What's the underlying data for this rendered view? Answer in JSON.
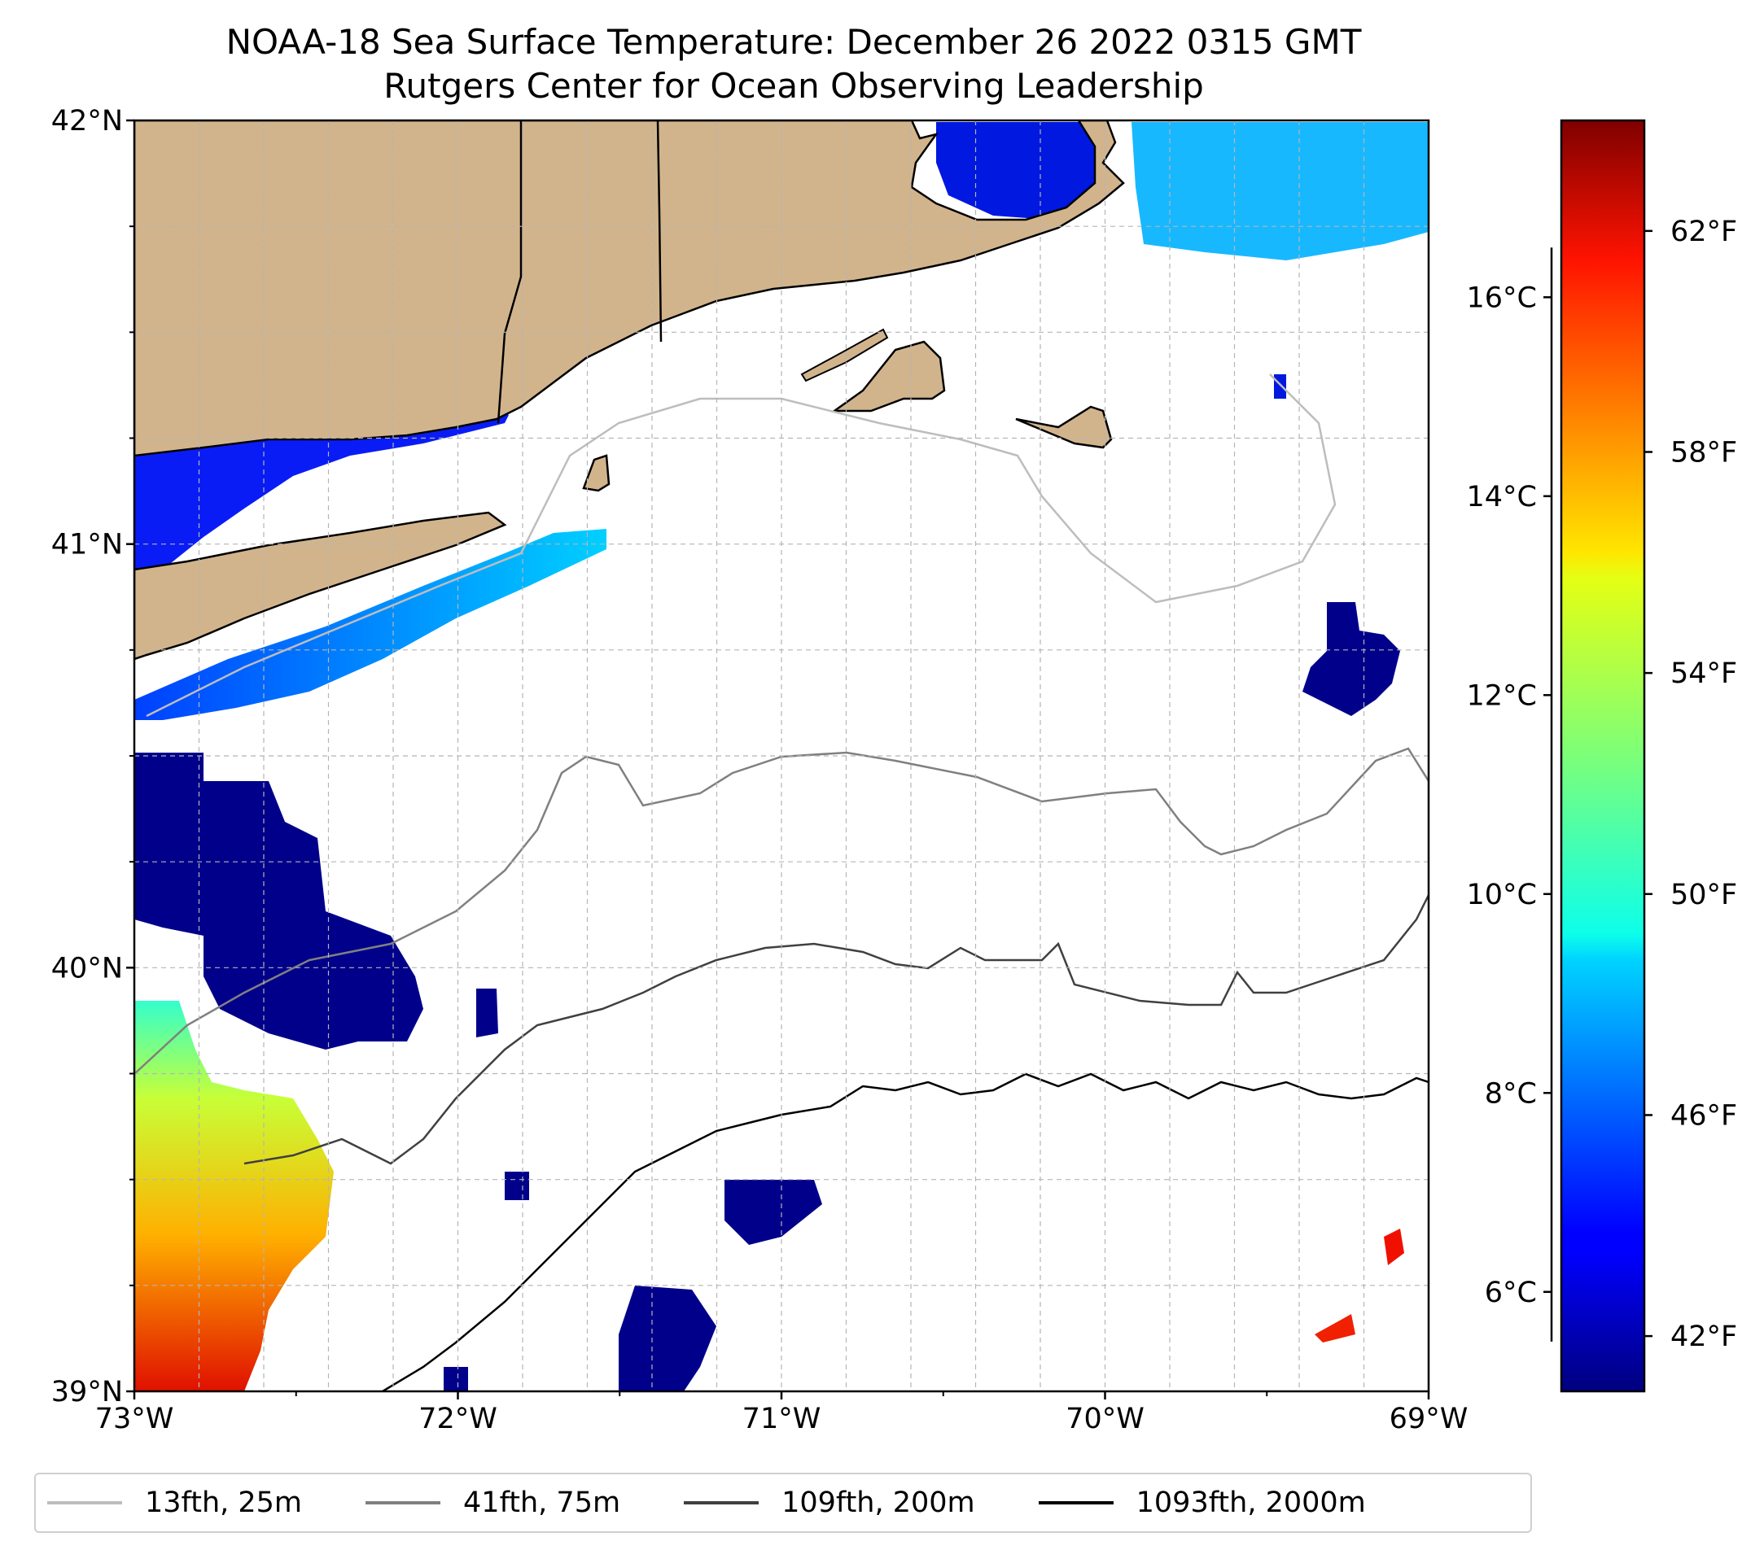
{
  "title": "NOAA-18 Sea Surface Temperature: December 26 2022 0315 GMT",
  "subtitle": "Rutgers Center for Ocean Observing Leadership",
  "map": {
    "lon_range": [
      -73,
      -69
    ],
    "lat_range": [
      39,
      42
    ],
    "lon_ticks": [
      {
        "value": -73,
        "label": "73°W"
      },
      {
        "value": -72,
        "label": "72°W"
      },
      {
        "value": -71,
        "label": "71°W"
      },
      {
        "value": -70,
        "label": "70°W"
      },
      {
        "value": -69,
        "label": "69°W"
      }
    ],
    "lat_ticks": [
      {
        "value": 42,
        "label": "42°N"
      },
      {
        "value": 41,
        "label": "41°N"
      },
      {
        "value": 40,
        "label": "40°N"
      },
      {
        "value": 39,
        "label": "39°N"
      }
    ],
    "gridlines": "dashed",
    "land_color": "#d2b48c",
    "land_regions": [
      "Southern New England",
      "Long Island",
      "Cape Cod",
      "Martha's Vineyard",
      "Nantucket",
      "Block Island"
    ],
    "cloud_mask": "white"
  },
  "colorbar": {
    "colormap": "jet",
    "celsius_ticks": [
      {
        "value": 6,
        "label": "6°C"
      },
      {
        "value": 8,
        "label": "8°C"
      },
      {
        "value": 10,
        "label": "10°C"
      },
      {
        "value": 12,
        "label": "12°C"
      },
      {
        "value": 14,
        "label": "14°C"
      },
      {
        "value": 16,
        "label": "16°C"
      }
    ],
    "fahrenheit_ticks": [
      {
        "value": 42,
        "label": "42°F"
      },
      {
        "value": 46,
        "label": "46°F"
      },
      {
        "value": 50,
        "label": "50°F"
      },
      {
        "value": 54,
        "label": "54°F"
      },
      {
        "value": 58,
        "label": "58°F"
      },
      {
        "value": 62,
        "label": "62°F"
      }
    ],
    "range_f": [
      41,
      64
    ]
  },
  "legend": {
    "placement": "bottom",
    "items": [
      {
        "label": "13fth, 25m",
        "color": "#bdbdbd"
      },
      {
        "label": "41fth, 75m",
        "color": "#808080"
      },
      {
        "label": "109fth, 200m",
        "color": "#404040"
      },
      {
        "label": "1093fth, 2000m",
        "color": "#000000"
      }
    ]
  },
  "sst_patches": [
    {
      "region": "Long Island Sound",
      "lon": -72.9,
      "lat": 41.1,
      "temp_f": 43
    },
    {
      "region": "South shore Long Island",
      "lon": -72.5,
      "lat": 40.8,
      "temp_f": 47
    },
    {
      "region": "Cape Cod Bay",
      "lon": -70.3,
      "lat": 41.85,
      "temp_f": 43
    },
    {
      "region": "Off Cape Cod",
      "lon": -69.5,
      "lat": 41.85,
      "temp_f": 48
    },
    {
      "region": "Shelf 40.3N 72.5W",
      "lon": -72.5,
      "lat": 40.25,
      "temp_f": 41
    },
    {
      "region": "Shelf break SW corner",
      "lon": -72.8,
      "lat": 39.3,
      "temp_f": 58
    },
    {
      "region": "Warm core 39.3N 69.1W",
      "lon": -69.1,
      "lat": 39.33,
      "temp_f": 63
    }
  ]
}
